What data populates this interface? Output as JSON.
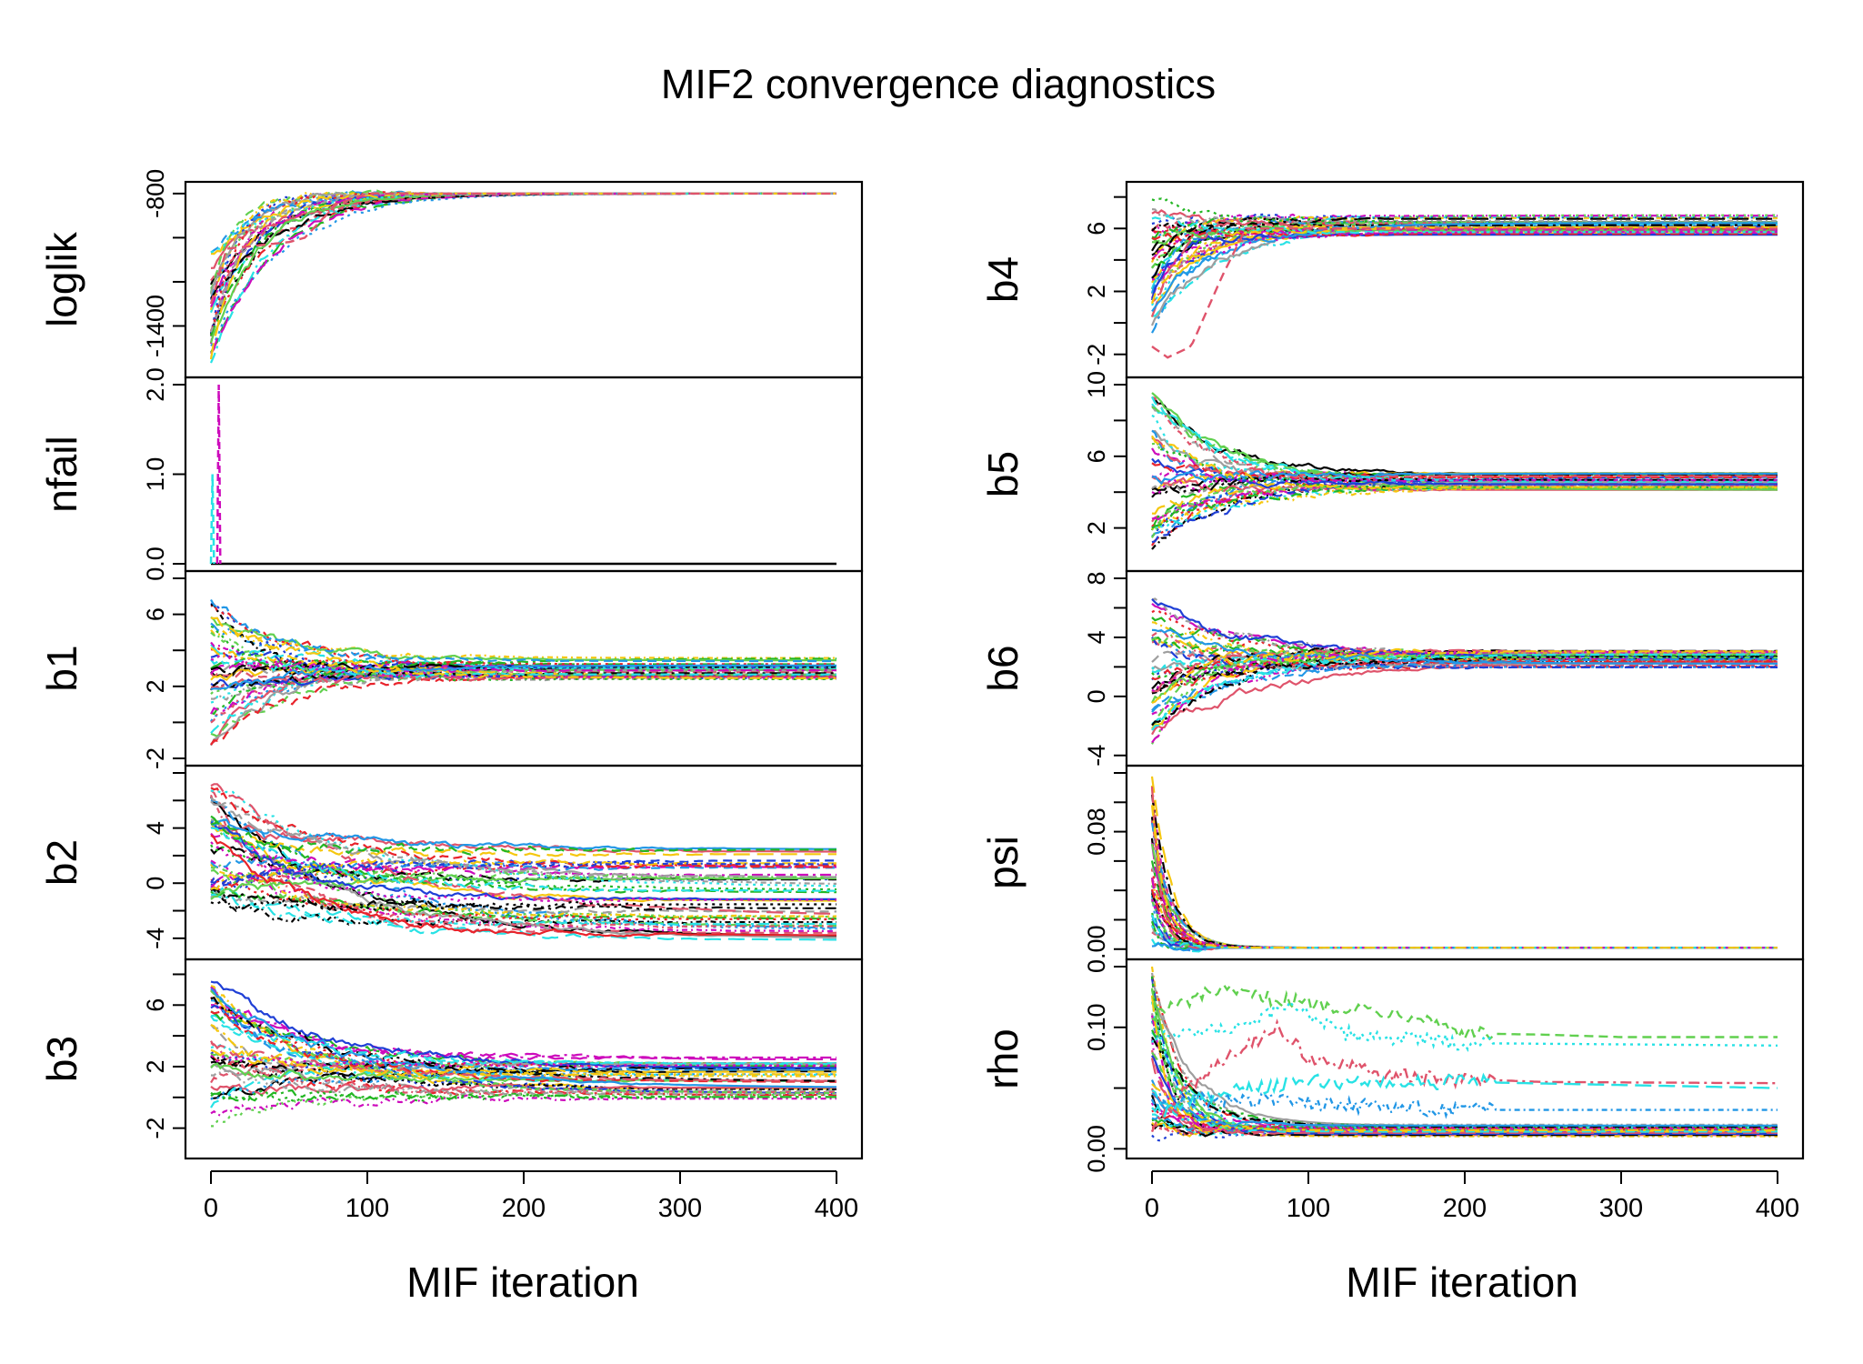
{
  "title": "MIF2 convergence diagnostics",
  "xlabel": "MIF iteration",
  "series_colors": [
    "#000000",
    "#DF536B",
    "#61D04F",
    "#2297E6",
    "#28E2E5",
    "#CD0BBC",
    "#F5C710",
    "#9E9E9E",
    "#1f3fd6",
    "#e8232b",
    "#23b623"
  ],
  "chart_data": [
    {
      "type": "line",
      "panel": "loglik",
      "ylabel": "loglik",
      "column": "left",
      "xlim": [
        0,
        400
      ],
      "xticks": [
        0,
        100,
        200,
        300,
        400
      ],
      "xtick_labels": [
        "0",
        "100",
        "200",
        "300",
        "400"
      ],
      "ylim": [
        -1600,
        -780
      ],
      "yticks": [
        -800,
        -1400
      ],
      "ytick_labels": [
        "-800",
        "-1400"
      ],
      "minor_yticks": [
        -1000,
        -1200
      ],
      "n_series": 30,
      "start_range": [
        -1600,
        -1050
      ],
      "converge_value": -800,
      "converge_spread": 0,
      "settle_iteration": 100,
      "outlier_path": [
        [
          0,
          -1300
        ],
        [
          10,
          -1050
        ],
        [
          50,
          -1020
        ],
        [
          60,
          -1000
        ],
        [
          80,
          -850
        ],
        [
          100,
          -800
        ],
        [
          400,
          -800
        ]
      ]
    },
    {
      "type": "line",
      "panel": "nfail",
      "ylabel": "nfail",
      "column": "left",
      "xlim": [
        0,
        400
      ],
      "xticks": [
        0,
        100,
        200,
        300,
        400
      ],
      "xtick_labels": [
        "0",
        "100",
        "200",
        "300",
        "400"
      ],
      "ylim": [
        0,
        2
      ],
      "yticks": [
        0,
        1,
        2
      ],
      "ytick_labels": [
        "0.0",
        "1.0",
        "2.0"
      ],
      "baseline_value": 0,
      "spikes": [
        {
          "x": 5,
          "y": 2.0,
          "color": "#CD0BBC"
        },
        {
          "x": 1,
          "y": 1.0,
          "color": "#28E2E5"
        }
      ]
    },
    {
      "type": "line",
      "panel": "b1",
      "ylabel": "b1",
      "column": "left",
      "xlim": [
        0,
        400
      ],
      "xticks": [
        0,
        100,
        200,
        300,
        400
      ],
      "xtick_labels": [
        "0",
        "100",
        "200",
        "300",
        "400"
      ],
      "ylim": [
        -2,
        8
      ],
      "yticks": [
        -2,
        2,
        6
      ],
      "ytick_labels": [
        "-2",
        "2",
        "6"
      ],
      "minor_yticks": [
        0,
        4,
        8
      ],
      "n_series": 40,
      "start_range": [
        -1.5,
        7.5
      ],
      "converge_value": 3.0,
      "converge_spread": 1.2,
      "settle_iteration": 150
    },
    {
      "type": "line",
      "panel": "b2",
      "ylabel": "b2",
      "column": "left",
      "xlim": [
        0,
        400
      ],
      "xticks": [
        0,
        100,
        200,
        300,
        400
      ],
      "xtick_labels": [
        "0",
        "100",
        "200",
        "300",
        "400"
      ],
      "ylim": [
        -5,
        8
      ],
      "yticks": [
        -4,
        0,
        4
      ],
      "ytick_labels": [
        "-4",
        "0",
        "4"
      ],
      "minor_yticks": [
        -2,
        2,
        6,
        8
      ],
      "n_series": 45,
      "start_range": [
        -2,
        7.5
      ],
      "converge_value": -0.8,
      "converge_spread": 7.0,
      "settle_iteration": 220
    },
    {
      "type": "line",
      "panel": "b3",
      "ylabel": "b3",
      "column": "left",
      "xlim": [
        0,
        400
      ],
      "xticks": [
        0,
        100,
        200,
        300,
        400
      ],
      "xtick_labels": [
        "0",
        "100",
        "200",
        "300",
        "400"
      ],
      "ylim": [
        -3.5,
        8.5
      ],
      "yticks": [
        -2,
        2,
        6
      ],
      "ytick_labels": [
        "-2",
        "2",
        "6"
      ],
      "minor_yticks": [
        0,
        4,
        8
      ],
      "n_series": 40,
      "start_range": [
        -2,
        7.5
      ],
      "converge_value": 1.2,
      "converge_spread": 2.8,
      "settle_iteration": 200
    },
    {
      "type": "line",
      "panel": "b4",
      "ylabel": "b4",
      "column": "right",
      "xlim": [
        0,
        400
      ],
      "xticks": [
        0,
        100,
        200,
        300,
        400
      ],
      "xtick_labels": [
        "0",
        "100",
        "200",
        "300",
        "400"
      ],
      "ylim": [
        -3,
        8.5
      ],
      "yticks": [
        -2,
        2,
        6
      ],
      "ytick_labels": [
        "-2",
        "2",
        "6"
      ],
      "minor_yticks": [
        0,
        4,
        8
      ],
      "n_series": 40,
      "start_range": [
        -1,
        8
      ],
      "converge_value": 6.2,
      "converge_spread": 1.3,
      "settle_iteration": 100,
      "outlier_path": [
        [
          0,
          -1.5
        ],
        [
          10,
          -2.2
        ],
        [
          25,
          -1.5
        ],
        [
          45,
          3
        ],
        [
          60,
          6
        ],
        [
          400,
          6
        ]
      ]
    },
    {
      "type": "line",
      "panel": "b5",
      "ylabel": "b5",
      "column": "right",
      "xlim": [
        0,
        400
      ],
      "xticks": [
        0,
        100,
        200,
        300,
        400
      ],
      "xtick_labels": [
        "0",
        "100",
        "200",
        "300",
        "400"
      ],
      "ylim": [
        0,
        10
      ],
      "yticks": [
        2,
        6,
        10
      ],
      "ytick_labels": [
        "2",
        "6",
        "10"
      ],
      "minor_yticks": [
        4,
        8
      ],
      "n_series": 40,
      "start_range": [
        0.5,
        9.5
      ],
      "converge_value": 4.6,
      "converge_spread": 1.0,
      "settle_iteration": 130
    },
    {
      "type": "line",
      "panel": "b6",
      "ylabel": "b6",
      "column": "right",
      "xlim": [
        0,
        400
      ],
      "xticks": [
        0,
        100,
        200,
        300,
        400
      ],
      "xtick_labels": [
        "0",
        "100",
        "200",
        "300",
        "400"
      ],
      "ylim": [
        -4.2,
        8
      ],
      "yticks": [
        -4,
        0,
        4,
        8
      ],
      "ytick_labels": [
        "-4",
        "0",
        "4",
        "8"
      ],
      "minor_yticks": [
        2,
        6
      ],
      "n_series": 40,
      "start_range": [
        -3.5,
        7.5
      ],
      "converge_value": 2.5,
      "converge_spread": 1.2,
      "settle_iteration": 150
    },
    {
      "type": "line",
      "panel": "psi",
      "ylabel": "psi",
      "column": "right",
      "xlim": [
        0,
        400
      ],
      "xticks": [
        0,
        100,
        200,
        300,
        400
      ],
      "xtick_labels": [
        "0",
        "100",
        "200",
        "300",
        "400"
      ],
      "ylim": [
        -0.002,
        0.12
      ],
      "yticks": [
        0,
        0.08
      ],
      "ytick_labels": [
        "0.00",
        "0.08"
      ],
      "minor_yticks": [
        0.02,
        0.04,
        0.06,
        0.1,
        0.12
      ],
      "n_series": 40,
      "start_range": [
        0.0,
        0.12
      ],
      "converge_value": 0.001,
      "converge_spread": 0,
      "settle_iteration": 30
    },
    {
      "type": "line",
      "panel": "rho",
      "ylabel": "rho",
      "column": "right",
      "xlim": [
        0,
        400
      ],
      "xticks": [
        0,
        100,
        200,
        300,
        400
      ],
      "xtick_labels": [
        "0",
        "100",
        "200",
        "300",
        "400"
      ],
      "ylim": [
        -0.002,
        0.15
      ],
      "yticks": [
        0,
        0.1
      ],
      "ytick_labels": [
        "0.00",
        "0.10"
      ],
      "minor_yticks": [
        0.05,
        0.15
      ],
      "n_series": 40,
      "start_range": [
        0.0,
        0.15
      ],
      "converge_value": 0.015,
      "converge_spread": 0.01,
      "settle_iteration": 60,
      "slow_paths": [
        {
          "color": "#61D04F",
          "points": [
            [
              0,
              0.11
            ],
            [
              40,
              0.13
            ],
            [
              100,
              0.12
            ],
            [
              170,
              0.11
            ],
            [
              200,
              0.095
            ],
            [
              250,
              0.094
            ],
            [
              300,
              0.092
            ],
            [
              400,
              0.092
            ]
          ]
        },
        {
          "color": "#28E2E5",
          "points": [
            [
              0,
              0.09
            ],
            [
              60,
              0.1
            ],
            [
              90,
              0.12
            ],
            [
              120,
              0.095
            ],
            [
              200,
              0.087
            ],
            [
              400,
              0.085
            ]
          ]
        },
        {
          "color": "#DF536B",
          "points": [
            [
              0,
              0.02
            ],
            [
              40,
              0.07
            ],
            [
              80,
              0.1
            ],
            [
              100,
              0.075
            ],
            [
              150,
              0.06
            ],
            [
              250,
              0.055
            ],
            [
              400,
              0.054
            ]
          ]
        },
        {
          "color": "#28E2E5",
          "points": [
            [
              0,
              0.03
            ],
            [
              60,
              0.05
            ],
            [
              100,
              0.055
            ],
            [
              200,
              0.055
            ],
            [
              400,
              0.05
            ]
          ]
        },
        {
          "color": "#2297E6",
          "points": [
            [
              0,
              0.04
            ],
            [
              80,
              0.04
            ],
            [
              150,
              0.034
            ],
            [
              200,
              0.032
            ],
            [
              400,
              0.032
            ]
          ]
        }
      ]
    }
  ]
}
